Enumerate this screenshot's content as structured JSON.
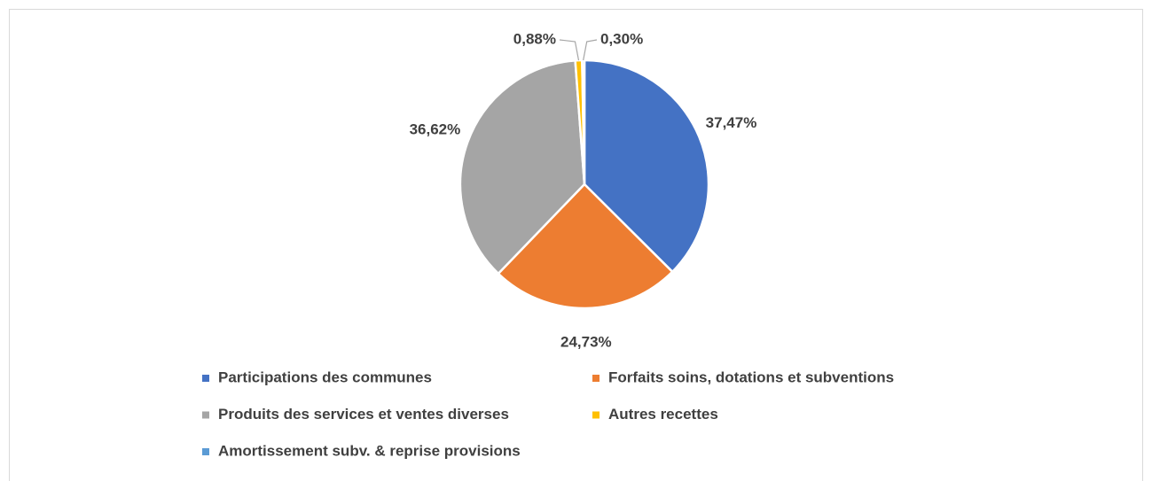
{
  "chart_data": {
    "type": "pie",
    "categories": [
      "Participations des communes",
      "Forfaits soins, dotations et subventions",
      "Produits des services et ventes diverses",
      "Autres recettes",
      "Amortissement subv. & reprise provisions"
    ],
    "values": [
      37.47,
      24.73,
      36.62,
      0.88,
      0.3
    ],
    "value_labels": [
      "37,47%",
      "24,73%",
      "36,62%",
      "0,88%",
      "0,30%"
    ],
    "colors": [
      "#4472c4",
      "#ed7d31",
      "#a5a5a5",
      "#ffc000",
      "#5b9bd5"
    ],
    "legend": "bottom"
  }
}
